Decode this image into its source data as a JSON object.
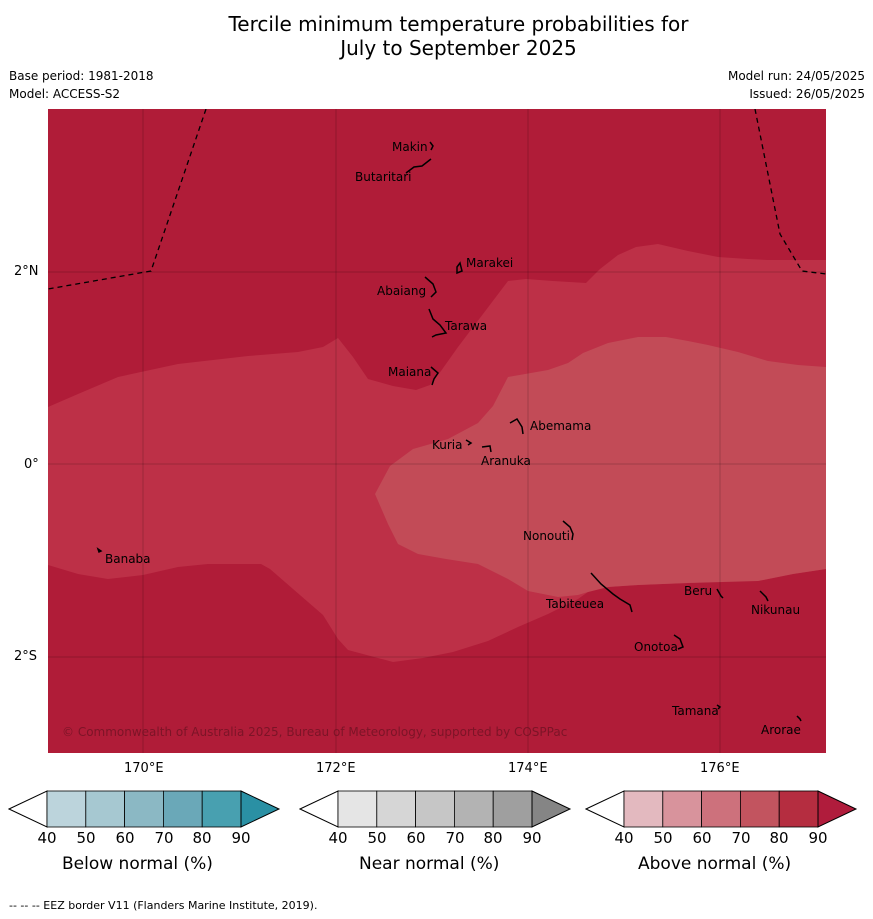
{
  "title_line1": "Tercile minimum temperature probabilities for",
  "title_line2": "July to September 2025",
  "base_period": "Base period: 1981-2018",
  "model": "Model: ACCESS-S2",
  "model_run": "Model run: 24/05/2025",
  "issued": "Issued: 26/05/2025",
  "copyright": "© Commonwealth of Australia 2025, Bureau of Meteorology, supported by COSPPac",
  "footer": "--  --  -- EEZ border V11 (Flanders Marine Institute, 2019).",
  "lon_labels": [
    "170°E",
    "172°E",
    "174°E",
    "176°E"
  ],
  "lat_labels": [
    "2°N",
    "0°",
    "2°S"
  ],
  "places": [
    "Makin",
    "Butaritari",
    "Marakei",
    "Abaiang",
    "Tarawa",
    "Maiana",
    "Abemama",
    "Kuria",
    "Aranuka",
    "Nonouti",
    "Banaba",
    "Tabiteuea",
    "Beru",
    "Nikunau",
    "Onotoa",
    "Tamana",
    "Arorae"
  ],
  "colorbars": [
    {
      "label": "Below normal (%)",
      "ticks": [
        "40",
        "50",
        "60",
        "70",
        "80",
        "90"
      ],
      "colors": [
        "#ffffff",
        "#bcd4dc",
        "#a6c8d1",
        "#8bb8c4",
        "#6aa8b8",
        "#48a0b0",
        "#2a90a4"
      ]
    },
    {
      "label": "Near normal (%)",
      "ticks": [
        "40",
        "50",
        "60",
        "70",
        "80",
        "90"
      ],
      "colors": [
        "#ffffff",
        "#e5e5e5",
        "#d6d6d6",
        "#c6c6c6",
        "#b3b3b3",
        "#9f9f9f",
        "#858585"
      ]
    },
    {
      "label": "Above normal (%)",
      "ticks": [
        "40",
        "50",
        "60",
        "70",
        "80",
        "90"
      ],
      "colors": [
        "#ffffff",
        "#e3b9bf",
        "#d8939c",
        "#cd717c",
        "#c2545f",
        "#b52d40",
        "#b01c3c"
      ]
    }
  ],
  "zone_colors": {
    "above_90": "#b01c38",
    "above_80": "#bd3047",
    "above_70": "#c24b57"
  }
}
